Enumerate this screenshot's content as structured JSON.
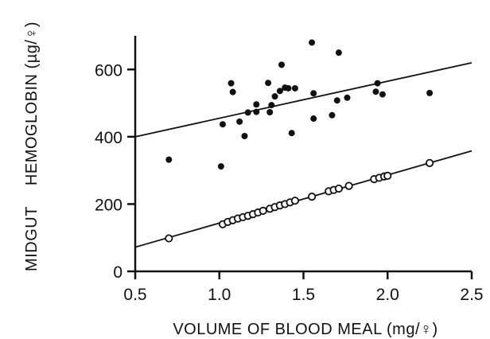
{
  "chart_data": {
    "type": "scatter",
    "xlabel": "VOLUME OF BLOOD MEAL (mg/♀)",
    "ylabel_left": "MIDGUT",
    "ylabel_right": "HEMOGLOBIN (µg/♀)",
    "xlim": [
      0.5,
      2.5
    ],
    "ylim": [
      0,
      700
    ],
    "x_ticks": [
      {
        "value": 0.5,
        "label": "0.5"
      },
      {
        "value": 1.0,
        "label": "1.0"
      },
      {
        "value": 1.5,
        "label": "1.5"
      },
      {
        "value": 2.0,
        "label": "2.0"
      },
      {
        "value": 2.5,
        "label": "2.5"
      }
    ],
    "y_ticks": [
      {
        "value": 0,
        "label": "0"
      },
      {
        "value": 200,
        "label": "200"
      },
      {
        "value": 400,
        "label": "400"
      },
      {
        "value": 600,
        "label": "600"
      }
    ],
    "series": [
      {
        "marker": "filled-circle",
        "color": "#111111",
        "points": [
          {
            "x": 0.7,
            "y": 332
          },
          {
            "x": 1.01,
            "y": 312
          },
          {
            "x": 1.02,
            "y": 437
          },
          {
            "x": 1.07,
            "y": 559
          },
          {
            "x": 1.08,
            "y": 533
          },
          {
            "x": 1.12,
            "y": 445
          },
          {
            "x": 1.15,
            "y": 402
          },
          {
            "x": 1.17,
            "y": 472
          },
          {
            "x": 1.22,
            "y": 496
          },
          {
            "x": 1.22,
            "y": 474
          },
          {
            "x": 1.29,
            "y": 560
          },
          {
            "x": 1.3,
            "y": 473
          },
          {
            "x": 1.31,
            "y": 494
          },
          {
            "x": 1.33,
            "y": 520
          },
          {
            "x": 1.36,
            "y": 536
          },
          {
            "x": 1.37,
            "y": 614
          },
          {
            "x": 1.39,
            "y": 546
          },
          {
            "x": 1.41,
            "y": 544
          },
          {
            "x": 1.43,
            "y": 411
          },
          {
            "x": 1.45,
            "y": 544
          },
          {
            "x": 1.55,
            "y": 680
          },
          {
            "x": 1.56,
            "y": 529
          },
          {
            "x": 1.56,
            "y": 454
          },
          {
            "x": 1.67,
            "y": 464
          },
          {
            "x": 1.7,
            "y": 508
          },
          {
            "x": 1.71,
            "y": 650
          },
          {
            "x": 1.76,
            "y": 516
          },
          {
            "x": 1.93,
            "y": 534
          },
          {
            "x": 1.94,
            "y": 559
          },
          {
            "x": 1.97,
            "y": 526
          },
          {
            "x": 2.25,
            "y": 530
          }
        ],
        "trendline": {
          "x": [
            0.5,
            2.5
          ],
          "y": [
            400,
            620
          ]
        }
      },
      {
        "marker": "open-circle",
        "color": "#111111",
        "points": [
          {
            "x": 0.7,
            "y": 98
          },
          {
            "x": 1.02,
            "y": 140
          },
          {
            "x": 1.05,
            "y": 147
          },
          {
            "x": 1.08,
            "y": 152
          },
          {
            "x": 1.11,
            "y": 157
          },
          {
            "x": 1.14,
            "y": 161
          },
          {
            "x": 1.17,
            "y": 165
          },
          {
            "x": 1.2,
            "y": 170
          },
          {
            "x": 1.23,
            "y": 175
          },
          {
            "x": 1.26,
            "y": 180
          },
          {
            "x": 1.3,
            "y": 186
          },
          {
            "x": 1.33,
            "y": 191
          },
          {
            "x": 1.36,
            "y": 196
          },
          {
            "x": 1.39,
            "y": 200
          },
          {
            "x": 1.42,
            "y": 205
          },
          {
            "x": 1.45,
            "y": 210
          },
          {
            "x": 1.55,
            "y": 222
          },
          {
            "x": 1.65,
            "y": 238
          },
          {
            "x": 1.68,
            "y": 242
          },
          {
            "x": 1.71,
            "y": 246
          },
          {
            "x": 1.77,
            "y": 254
          },
          {
            "x": 1.92,
            "y": 274
          },
          {
            "x": 1.95,
            "y": 278
          },
          {
            "x": 1.98,
            "y": 282
          },
          {
            "x": 2.0,
            "y": 284
          },
          {
            "x": 2.25,
            "y": 322
          }
        ],
        "trendline": {
          "x": [
            0.5,
            2.5
          ],
          "y": [
            72,
            358
          ]
        }
      }
    ]
  }
}
